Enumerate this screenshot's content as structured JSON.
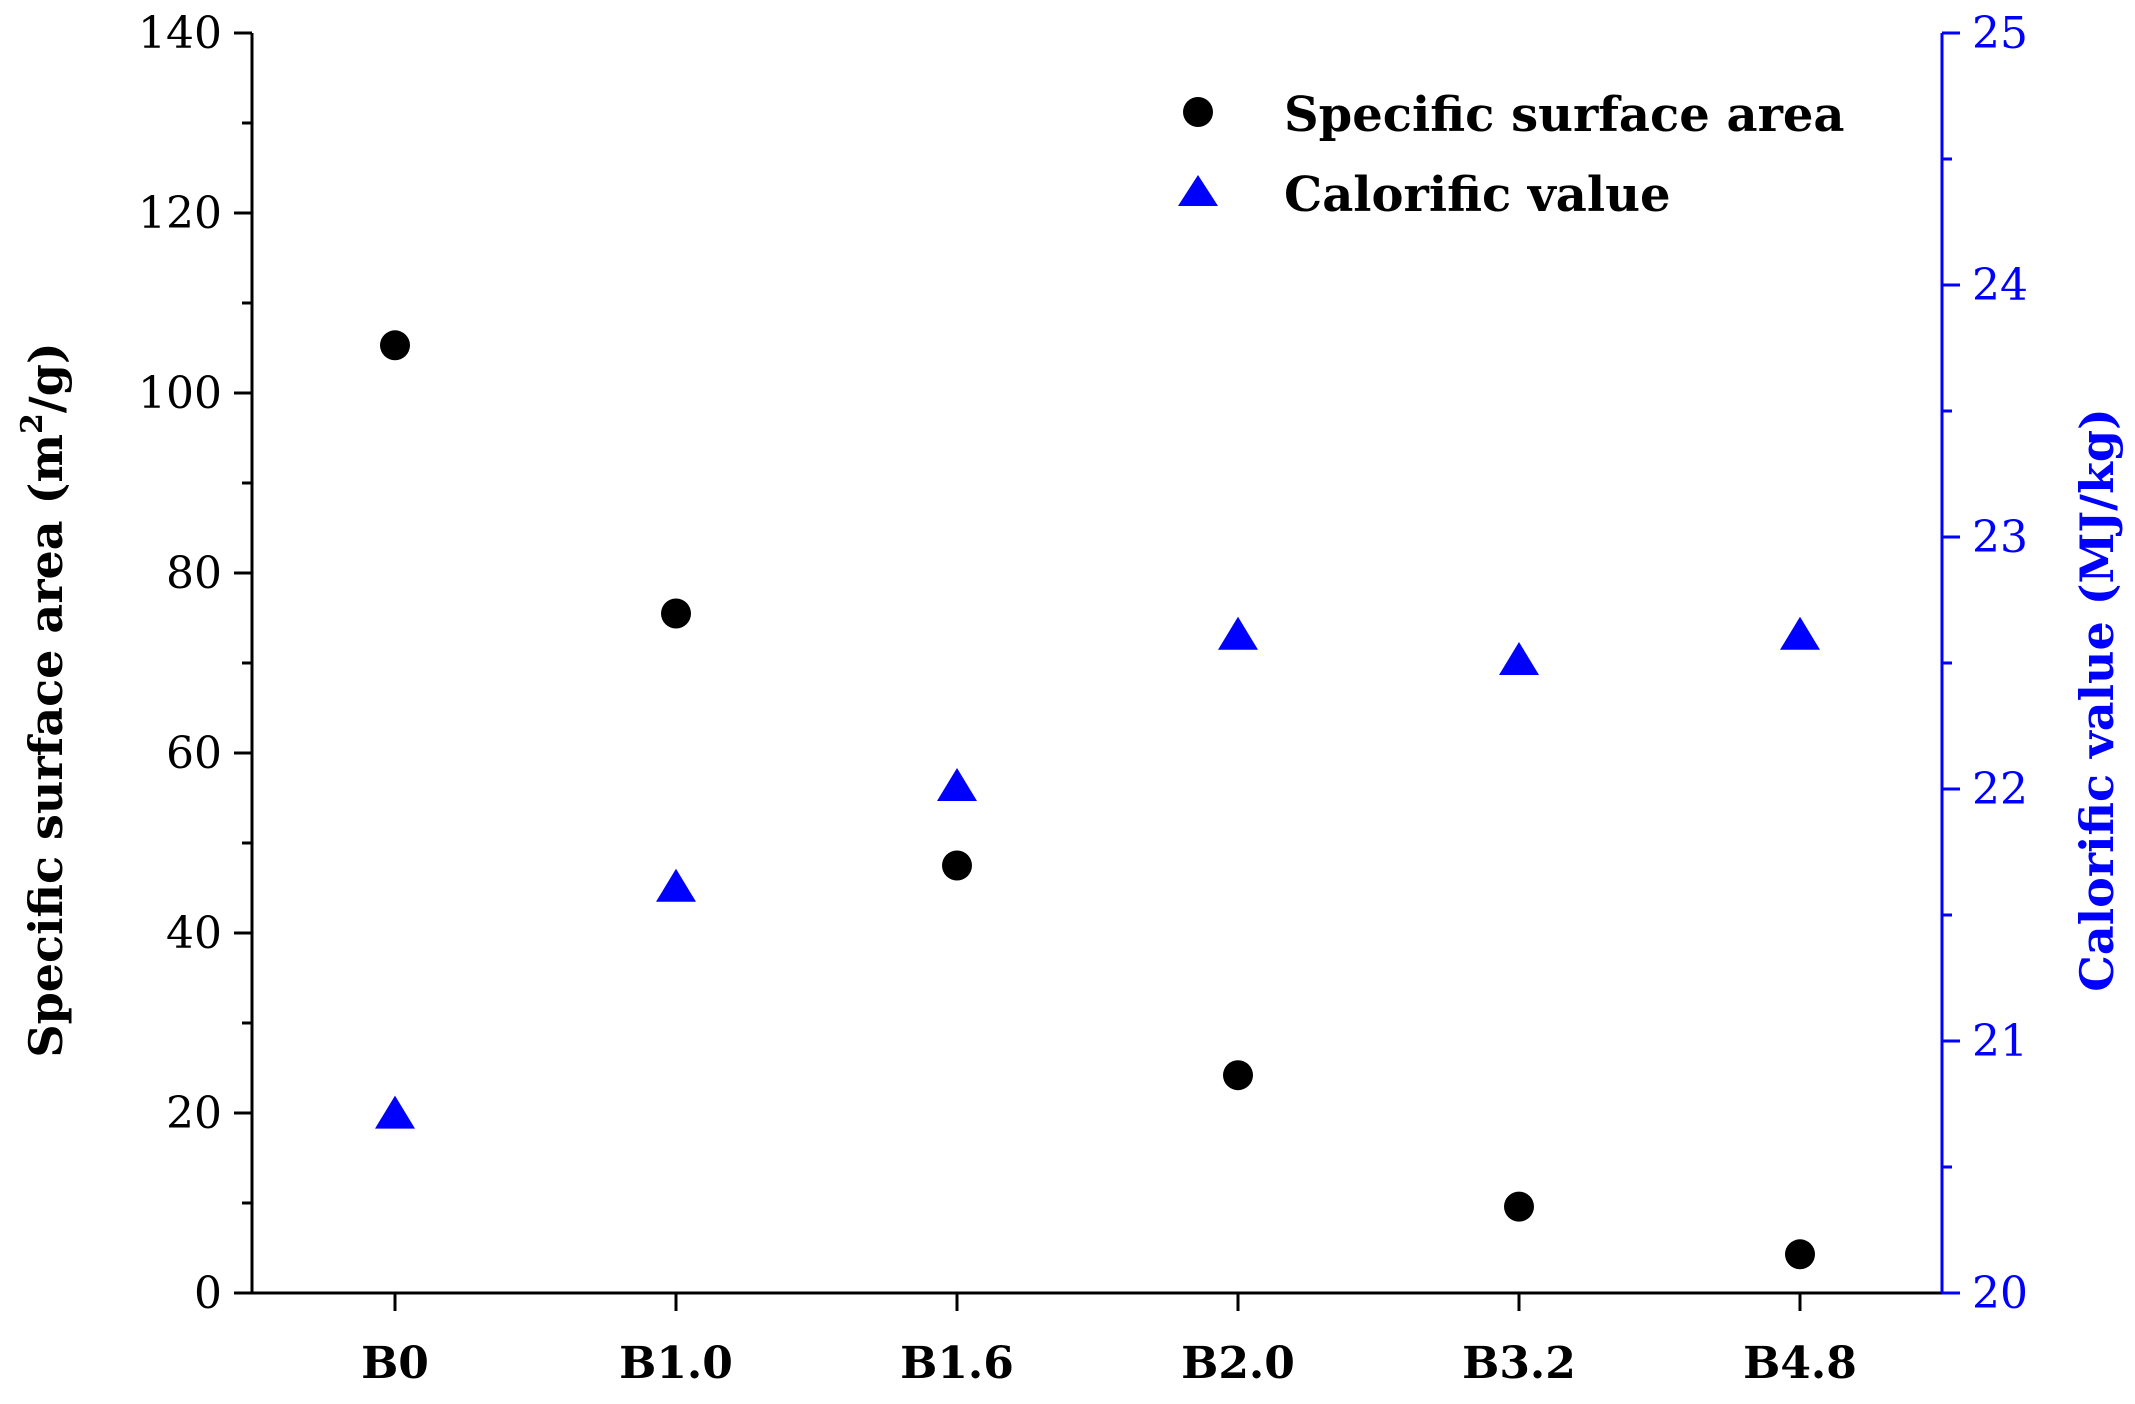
{
  "chart_data": {
    "type": "scatter",
    "categories": [
      "B0",
      "B1.0",
      "B1.6",
      "B2.0",
      "B3.2",
      "B4.8"
    ],
    "series": [
      {
        "name": "Specific surface area",
        "axis": "left",
        "marker": "circle",
        "color": "#000000",
        "values": [
          105.3,
          75.5,
          47.5,
          24.2,
          9.6,
          4.3
        ]
      },
      {
        "name": "Calorific value",
        "axis": "right",
        "marker": "triangle",
        "color": "#0000ff",
        "values": [
          20.7,
          21.6,
          22.0,
          22.6,
          22.5,
          22.6
        ]
      }
    ],
    "ylabel_left": {
      "pre": "Specific surface area (m",
      "sup": "2",
      "post": "/g)"
    },
    "ylabel_right": "Calorific value (MJ/kg)",
    "ylim_left": [
      0,
      140
    ],
    "yticks_left": [
      "0",
      "20",
      "40",
      "60",
      "80",
      "100",
      "120",
      "140"
    ],
    "ylim_right": [
      20,
      25
    ],
    "yticks_right": [
      "20",
      "21",
      "22",
      "23",
      "24",
      "25"
    ],
    "legend_position": "top-right",
    "grid": false
  }
}
